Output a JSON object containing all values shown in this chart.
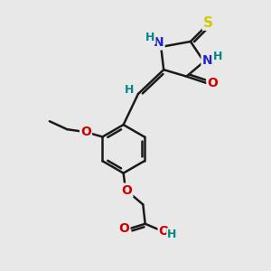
{
  "bg_color": "#e8e8e8",
  "bond_color": "#1a1a1a",
  "bond_width": 1.8,
  "S_color": "#cccc00",
  "N_color": "#2222cc",
  "O_color": "#cc0000",
  "H_color": "#008888",
  "figsize": [
    3.0,
    3.0
  ],
  "dpi": 100,
  "xlim": [
    0,
    10
  ],
  "ylim": [
    0,
    10
  ]
}
